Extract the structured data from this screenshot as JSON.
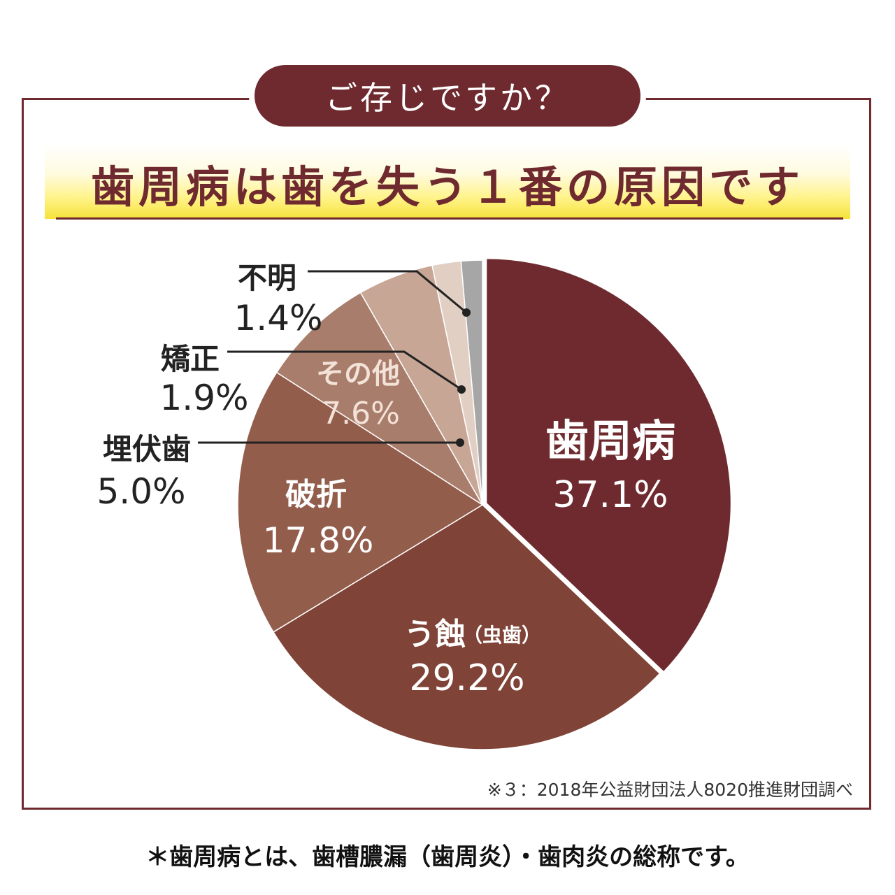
{
  "badge": "ご存じですか？",
  "headline": "歯周病は歯を失う１番の原因です",
  "chart_data": {
    "type": "pie",
    "slices": [
      {
        "label": "歯周病",
        "value": 37.1,
        "value_label": "37.1%",
        "color": "#6e2a2e"
      },
      {
        "label": "う蝕",
        "sublabel": "（虫歯）",
        "value": 29.2,
        "value_label": "29.2%",
        "color": "#7f4337"
      },
      {
        "label": "破折",
        "value": 17.8,
        "value_label": "17.8%",
        "color": "#935d4c"
      },
      {
        "label": "その他",
        "value": 7.6,
        "value_label": "7.6%",
        "color": "#a97d6b"
      },
      {
        "label": "埋伏歯",
        "value": 5.0,
        "value_label": "5.0%",
        "color": "#c7a696"
      },
      {
        "label": "矯正",
        "value": 1.9,
        "value_label": "1.9%",
        "color": "#e2cfc4"
      },
      {
        "label": "不明",
        "value": 1.4,
        "value_label": "1.4%",
        "color": "#a6a6a6"
      }
    ]
  },
  "source": "※３：2018年公益財団法人8020推進財団調べ",
  "footnote": "＊歯周病とは、歯槽膿漏（歯周炎）・歯肉炎の総称です。"
}
